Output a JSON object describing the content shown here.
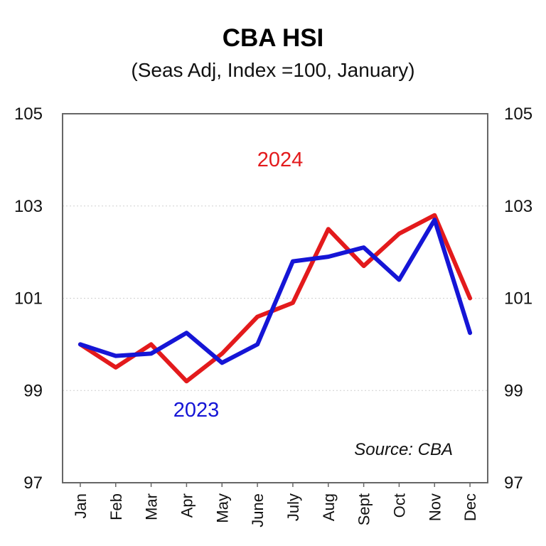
{
  "chart_data": {
    "type": "line",
    "title": "CBA HSI",
    "subtitle": "(Seas Adj, Index =100, January)",
    "categories": [
      "Jan",
      "Feb",
      "Mar",
      "Apr",
      "May",
      "June",
      "July",
      "Aug",
      "Sept",
      "Oct",
      "Nov",
      "Dec"
    ],
    "ylim": [
      97,
      105
    ],
    "yticks": [
      "105",
      "103",
      "101",
      "99",
      "97"
    ],
    "right_axis_ticks": [
      "105",
      "103",
      "101",
      "99",
      "97"
    ],
    "grid": "horizontal dotted",
    "series": [
      {
        "name": "2024",
        "color": "#e31a1c",
        "values": [
          100.0,
          99.5,
          100.0,
          99.2,
          99.8,
          100.6,
          100.9,
          102.5,
          101.7,
          102.4,
          102.8,
          101.0
        ]
      },
      {
        "name": "2023",
        "color": "#1515d6",
        "values": [
          100.0,
          99.75,
          99.8,
          100.25,
          99.6,
          100.0,
          101.8,
          101.9,
          102.1,
          101.4,
          102.7,
          100.25
        ]
      }
    ],
    "source": "Source: CBA"
  }
}
